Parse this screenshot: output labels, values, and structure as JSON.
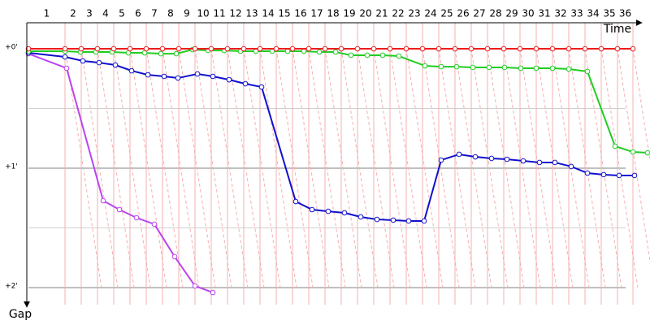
{
  "chart_data": {
    "type": "line",
    "x_label": "Time",
    "y_label": "Gap",
    "xlim": [
      0,
      765
    ],
    "ylim": [
      -0.218,
      2.143
    ],
    "yticks": [
      {
        "value": 0,
        "label": "+0'"
      },
      {
        "value": 1,
        "label": "+1'"
      },
      {
        "value": 2,
        "label": "+2'"
      }
    ],
    "minor_yticks": [
      0.5,
      1.5
    ],
    "laps": [
      1,
      2,
      3,
      4,
      5,
      6,
      7,
      8,
      9,
      10,
      11,
      12,
      13,
      14,
      15,
      16,
      17,
      18,
      19,
      20,
      21,
      22,
      23,
      24,
      25,
      26,
      27,
      28,
      29,
      30,
      31,
      32,
      33,
      34,
      35,
      36
    ],
    "lap_color": "#f4b0b0",
    "series": [
      {
        "color": "#ee1c1c",
        "x": [
          0,
          45,
          65,
          85,
          105,
          125,
          145,
          165,
          185,
          205,
          225,
          245,
          265,
          285,
          305,
          325,
          345,
          365,
          385,
          405,
          425,
          445,
          465,
          485,
          505,
          525,
          545,
          565,
          585,
          605,
          625,
          645,
          665,
          685,
          705,
          725,
          744
        ],
        "values": [
          0,
          0,
          0,
          0,
          0,
          0,
          0,
          0,
          0,
          0,
          0,
          0,
          0,
          0,
          0,
          0,
          0,
          0,
          0,
          0,
          0,
          0,
          0,
          0,
          0,
          0,
          0,
          0,
          0,
          0,
          0,
          0,
          0,
          0,
          0,
          0,
          0
        ]
      },
      {
        "color": "#22cc22",
        "x": [
          0,
          45,
          64,
          83,
          103,
          123,
          143,
          163,
          182,
          202,
          221,
          241,
          261,
          280,
          300,
          319,
          339,
          358,
          378,
          397,
          417,
          436,
          456,
          488,
          508,
          527,
          547,
          567,
          586,
          606,
          625,
          645,
          665,
          688,
          722,
          744,
          762
        ],
        "values": [
          0.02,
          0.02,
          0.027,
          0.027,
          0.027,
          0.034,
          0.034,
          0.041,
          0.041,
          0.007,
          0.014,
          0.014,
          0.02,
          0.02,
          0.02,
          0.02,
          0.02,
          0.027,
          0.027,
          0.054,
          0.054,
          0.054,
          0.061,
          0.143,
          0.15,
          0.15,
          0.156,
          0.156,
          0.156,
          0.163,
          0.163,
          0.163,
          0.17,
          0.19,
          0.816,
          0.864,
          0.871
        ]
      },
      {
        "color": "#1010cc",
        "x": [
          0,
          45,
          67,
          87,
          107,
          127,
          147,
          167,
          184,
          208,
          227,
          247,
          267,
          287,
          329,
          349,
          369,
          389,
          409,
          429,
          449,
          468,
          487,
          508,
          530,
          550,
          570,
          589,
          609,
          629,
          648,
          668,
          688,
          708,
          727,
          746
        ],
        "values": [
          0.034,
          0.068,
          0.102,
          0.116,
          0.136,
          0.184,
          0.218,
          0.231,
          0.245,
          0.211,
          0.231,
          0.259,
          0.293,
          0.32,
          1.279,
          1.347,
          1.361,
          1.374,
          1.408,
          1.429,
          1.435,
          1.442,
          1.442,
          0.932,
          0.884,
          0.905,
          0.918,
          0.925,
          0.939,
          0.952,
          0.952,
          0.986,
          1.041,
          1.054,
          1.061,
          1.061
        ]
      },
      {
        "color": "#bb44ee",
        "x": [
          0,
          47,
          92,
          112,
          133,
          155,
          180,
          205,
          227
        ],
        "values": [
          0.041,
          0.163,
          1.272,
          1.347,
          1.415,
          1.469,
          1.741,
          1.986,
          2.041
        ]
      }
    ]
  }
}
